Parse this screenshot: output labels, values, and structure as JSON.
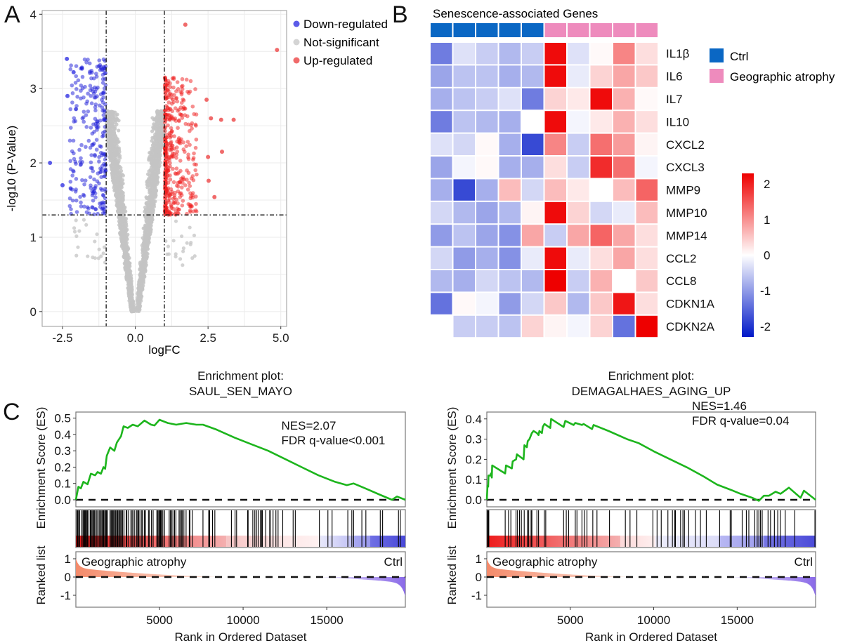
{
  "figure": {
    "panel_labels": [
      "A",
      "B",
      "C"
    ]
  },
  "chart_data": [
    {
      "id": "volcano",
      "type": "scatter",
      "title": "",
      "xlabel": "logFC",
      "ylabel": "-log10 (P-Value)",
      "xlim": [
        -3.2,
        5.2
      ],
      "ylim": [
        -0.2,
        4.05
      ],
      "x_ticks": [
        -2.5,
        0.0,
        2.5,
        5.0
      ],
      "x_tick_labels": [
        "-2.5",
        "0.0",
        "2.5",
        "5.0"
      ],
      "y_ticks": [
        0,
        1,
        2,
        3,
        4
      ],
      "y_tick_labels": [
        "0",
        "1",
        "2",
        "3",
        "4"
      ],
      "grid": true,
      "thresholds": {
        "logFC": [
          -1,
          1
        ],
        "neg_log10_p": 1.3
      },
      "legend": {
        "placement": "right",
        "entries": [
          {
            "label": "Down-regulated",
            "color": "#5b5be8"
          },
          {
            "label": "Not-significant",
            "color": "#c8c8c8"
          },
          {
            "label": "Up-regulated",
            "color": "#f06a6a"
          }
        ]
      },
      "highlight_points": [
        {
          "x": 4.87,
          "y": 3.52,
          "group": "up"
        },
        {
          "x": 1.72,
          "y": 3.86,
          "group": "up"
        },
        {
          "x": 3.38,
          "y": 2.58,
          "group": "up"
        },
        {
          "x": 2.98,
          "y": 2.15,
          "group": "up"
        },
        {
          "x": 2.95,
          "y": 2.58,
          "group": "up"
        },
        {
          "x": 2.6,
          "y": 2.6,
          "group": "up"
        },
        {
          "x": 2.45,
          "y": 2.85,
          "group": "up"
        },
        {
          "x": 2.5,
          "y": 2.08,
          "group": "up"
        },
        {
          "x": 2.72,
          "y": 1.54,
          "group": "up"
        },
        {
          "x": 2.52,
          "y": 1.76,
          "group": "up"
        },
        {
          "x": -2.93,
          "y": 2.0,
          "group": "down"
        },
        {
          "x": -2.35,
          "y": 3.4,
          "group": "down"
        },
        {
          "x": -2.5,
          "y": 1.7,
          "group": "down"
        },
        {
          "x": -2.33,
          "y": 2.9,
          "group": "down"
        },
        {
          "x": -2.12,
          "y": 3.22,
          "group": "down"
        }
      ],
      "bulk_description": "Dense V-shaped cloud of non-significant genes centered at logFC 0; blue points for logFC<-1 and p<0.05, red points for logFC>1 and p<0.05"
    },
    {
      "id": "heatmap",
      "type": "heatmap",
      "title": "Senescence-associated Genes",
      "rows": [
        "IL1β",
        "IL6",
        "IL7",
        "IL10",
        "CXCL2",
        "CXCL3",
        "MMP9",
        "MMP10",
        "MMP14",
        "CCL2",
        "CCL8",
        "CDKN1A",
        "CDKN2A"
      ],
      "columns": [
        "Ctrl",
        "Ctrl",
        "Ctrl",
        "Ctrl",
        "Ctrl",
        "Geographic atrophy",
        "Geographic atrophy",
        "Geographic atrophy",
        "Geographic atrophy",
        "Geographic atrophy"
      ],
      "values": [
        [
          -1.3,
          -0.3,
          -0.5,
          -0.7,
          -0.5,
          2.2,
          -0.3,
          0.05,
          1.1,
          0.3
        ],
        [
          -0.9,
          -0.6,
          -0.6,
          -0.8,
          -0.7,
          2.2,
          -0.2,
          0.4,
          0.8,
          0.5
        ],
        [
          -0.8,
          -0.6,
          -0.5,
          -0.3,
          -1.3,
          0.4,
          0.2,
          2.2,
          0.7,
          0.05
        ],
        [
          -1.3,
          -0.6,
          -0.7,
          -0.8,
          0.0,
          2.2,
          -0.1,
          0.2,
          0.7,
          0.3
        ],
        [
          -0.3,
          -0.4,
          0.05,
          -0.8,
          -1.8,
          1.1,
          -0.5,
          1.3,
          0.9,
          0.1
        ],
        [
          -0.9,
          -0.1,
          0.05,
          -0.8,
          -0.8,
          0.3,
          -0.5,
          1.9,
          1.3,
          -0.1
        ],
        [
          -0.8,
          -1.8,
          -0.8,
          0.6,
          -0.4,
          0.6,
          0.2,
          0.0,
          0.6,
          1.4
        ],
        [
          -0.4,
          -0.7,
          -0.9,
          -0.7,
          0.1,
          2.2,
          0.4,
          -0.4,
          -0.2,
          0.6
        ],
        [
          -1.0,
          -0.6,
          -0.9,
          -1.1,
          0.8,
          -0.5,
          0.8,
          1.4,
          0.8,
          0.3
        ],
        [
          -0.4,
          -1.0,
          -0.8,
          -1.1,
          -0.2,
          2.2,
          -0.2,
          0.3,
          0.8,
          0.3
        ],
        [
          -0.7,
          -0.8,
          -0.4,
          -0.6,
          -0.7,
          2.3,
          -0.5,
          0.7,
          0.0,
          0.5
        ],
        [
          -1.4,
          0.05,
          -0.1,
          -1.0,
          -0.4,
          0.5,
          -0.7,
          0.5,
          2.1,
          0.3
        ],
        [
          0.0,
          -0.5,
          -0.5,
          -0.6,
          0.4,
          0.1,
          -0.1,
          0.4,
          -1.4,
          2.3
        ]
      ],
      "color_scale": {
        "min": -2.3,
        "max": 2.3,
        "low": "#0018c8",
        "mid": "#ffffff",
        "high": "#ee0000"
      },
      "colorbar_ticks": [
        2,
        1,
        0,
        -1,
        -2
      ],
      "colorbar_tick_labels": [
        "2",
        "1",
        "0",
        "-1",
        "-2"
      ],
      "legend": {
        "placement": "right",
        "entries": [
          {
            "label": "Ctrl",
            "color": "#0a67c4"
          },
          {
            "label": "Geographic atrophy",
            "color": "#ee8bbd"
          }
        ]
      }
    },
    {
      "id": "gsea-left",
      "type": "line",
      "title": "Enrichment plot:\nSAUL_SEN_MAYO",
      "title_line1": "Enrichment plot:",
      "title_line2": "SAUL_SEN_MAYO",
      "ylabel_es": "Enrichment Score (ES)",
      "ylabel_rank": "Ranked list",
      "xlabel": "Rank in Ordered Dataset",
      "annotation_line1": "NES=2.07",
      "annotation_line2": "FDR q-value<0.001",
      "xlim": [
        0,
        19700
      ],
      "es_ylim": [
        -0.02,
        0.52
      ],
      "es_ticks": [
        0.0,
        0.1,
        0.2,
        0.3,
        0.4,
        0.5
      ],
      "es_tick_labels": [
        "0.0",
        "0.1",
        "0.2",
        "0.3",
        "0.4",
        "0.5"
      ],
      "rank_ticks": [
        1,
        0,
        -1
      ],
      "rank_tick_labels": [
        "1",
        "0",
        "-1"
      ],
      "x_ticks": [
        5000,
        10000,
        15000
      ],
      "x_tick_labels": [
        "5000",
        "10000",
        "15000"
      ],
      "group_labels": {
        "left": "Geographic atrophy",
        "right": "Ctrl"
      },
      "line_color": "#1db51d",
      "es_curve": [
        [
          0,
          0.0
        ],
        [
          150,
          0.08
        ],
        [
          300,
          0.07
        ],
        [
          450,
          0.11
        ],
        [
          700,
          0.095
        ],
        [
          900,
          0.16
        ],
        [
          1150,
          0.15
        ],
        [
          1300,
          0.17
        ],
        [
          1500,
          0.16
        ],
        [
          1650,
          0.2
        ],
        [
          1750,
          0.19
        ],
        [
          1850,
          0.27
        ],
        [
          2050,
          0.32
        ],
        [
          2300,
          0.3
        ],
        [
          2450,
          0.35
        ],
        [
          2700,
          0.39
        ],
        [
          2850,
          0.45
        ],
        [
          3100,
          0.44
        ],
        [
          3400,
          0.46
        ],
        [
          3700,
          0.45
        ],
        [
          4100,
          0.485
        ],
        [
          4500,
          0.46
        ],
        [
          4700,
          0.455
        ],
        [
          5000,
          0.49
        ],
        [
          5500,
          0.47
        ],
        [
          6000,
          0.46
        ],
        [
          6600,
          0.47
        ],
        [
          7200,
          0.46
        ],
        [
          7600,
          0.46
        ],
        [
          8400,
          0.43
        ],
        [
          9500,
          0.38
        ],
        [
          10500,
          0.34
        ],
        [
          11500,
          0.3
        ],
        [
          12500,
          0.25
        ],
        [
          13500,
          0.2
        ],
        [
          14500,
          0.15
        ],
        [
          15500,
          0.11
        ],
        [
          16200,
          0.09
        ],
        [
          16600,
          0.1
        ],
        [
          17300,
          0.07
        ],
        [
          18200,
          0.03
        ],
        [
          18900,
          0.0
        ],
        [
          19200,
          0.02
        ],
        [
          19700,
          0.0
        ]
      ],
      "hit_ranks": [
        60,
        110,
        170,
        220,
        330,
        420,
        470,
        520,
        560,
        600,
        660,
        690,
        780,
        860,
        900,
        960,
        1020,
        1060,
        1120,
        1200,
        1260,
        1340,
        1420,
        1480,
        1550,
        1600,
        1660,
        1720,
        1780,
        1830,
        1900,
        2040,
        2100,
        2150,
        2210,
        2260,
        2320,
        2380,
        2440,
        2500,
        2560,
        2620,
        2680,
        2740,
        2800,
        2880,
        3010,
        3050,
        3150,
        3290,
        3360,
        3420,
        3520,
        3640,
        3700,
        3760,
        3830,
        3940,
        4000,
        4100,
        4160,
        4340,
        4400,
        4520,
        4620,
        4840,
        4900,
        4960,
        5010,
        5050,
        5080,
        5120,
        5200,
        5300,
        5580,
        5650,
        5730,
        5800,
        5900,
        5980,
        6170,
        6230,
        6310,
        6360,
        6460,
        6590,
        6780,
        6820,
        6960,
        7600,
        7940,
        8000,
        8170,
        8310,
        9300,
        9520,
        9610,
        10270,
        10300,
        10580,
        10700,
        10800,
        10900,
        11040,
        11100,
        11150,
        11350,
        11590,
        11620,
        11790,
        11960,
        12090,
        12370,
        12990,
        13120,
        14560,
        15070,
        15320,
        16260,
        16500,
        16610,
        17100,
        17340,
        18200,
        18340,
        19290,
        19400
      ],
      "rank_strip": [
        {
          "from": 0,
          "to": 9000,
          "color_from": "#ee1c1c",
          "color_to": "#f4b0b0"
        },
        {
          "from": 9000,
          "to": 12300,
          "color_from": "#f6c4c4",
          "color_to": "#fbe4e4"
        },
        {
          "from": 12300,
          "to": 14600,
          "color_from": "#fde6e6",
          "color_to": "#fff2f2"
        },
        {
          "from": 14600,
          "to": 16600,
          "color_from": "#e8e8fa",
          "color_to": "#c0c0f4"
        },
        {
          "from": 16600,
          "to": 17600,
          "color_from": "#a8a8f0",
          "color_to": "#9a9aee"
        },
        {
          "from": 17600,
          "to": 19700,
          "color_from": "#7070e4",
          "color_to": "#4848d8"
        }
      ]
    },
    {
      "id": "gsea-right",
      "type": "line",
      "title": "Enrichment plot:\nDEMAGALHAES_AGING_UP",
      "title_line1": "Enrichment plot:",
      "title_line2": "DEMAGALHAES_AGING_UP",
      "ylabel_es": "Enrichment Score (ES)",
      "ylabel_rank": "Ranked list",
      "xlabel": "Rank in Ordered Dataset",
      "annotation_line1": "NES=1.46",
      "annotation_line2": "FDR q-value=0.04",
      "xlim": [
        0,
        19700
      ],
      "es_ylim": [
        -0.025,
        0.42
      ],
      "es_ticks": [
        0.0,
        0.1,
        0.2,
        0.3,
        0.4
      ],
      "es_tick_labels": [
        "0.0",
        "0.1",
        "0.2",
        "0.3",
        "0.4"
      ],
      "rank_ticks": [
        1,
        0,
        -1
      ],
      "rank_tick_labels": [
        "1",
        "0",
        "-1"
      ],
      "x_ticks": [
        5000,
        10000,
        15000
      ],
      "x_tick_labels": [
        "5000",
        "10000",
        "15000"
      ],
      "group_labels": {
        "left": "Geographic atrophy",
        "right": "Ctrl"
      },
      "line_color": "#1db51d",
      "es_curve": [
        [
          0,
          0.0
        ],
        [
          40,
          0.07
        ],
        [
          80,
          0.065
        ],
        [
          100,
          0.12
        ],
        [
          200,
          0.12
        ],
        [
          250,
          0.13
        ],
        [
          300,
          0.11
        ],
        [
          320,
          0.17
        ],
        [
          1100,
          0.13
        ],
        [
          1150,
          0.17
        ],
        [
          1500,
          0.155
        ],
        [
          1550,
          0.19
        ],
        [
          1750,
          0.2
        ],
        [
          1800,
          0.225
        ],
        [
          2200,
          0.2
        ],
        [
          2250,
          0.27
        ],
        [
          2400,
          0.26
        ],
        [
          2450,
          0.29
        ],
        [
          2550,
          0.3
        ],
        [
          2600,
          0.31
        ],
        [
          2700,
          0.33
        ],
        [
          2800,
          0.34
        ],
        [
          3000,
          0.33
        ],
        [
          3100,
          0.32
        ],
        [
          3150,
          0.34
        ],
        [
          3300,
          0.33
        ],
        [
          3350,
          0.36
        ],
        [
          3450,
          0.375
        ],
        [
          3800,
          0.355
        ],
        [
          3850,
          0.4
        ],
        [
          4600,
          0.36
        ],
        [
          4700,
          0.39
        ],
        [
          5200,
          0.37
        ],
        [
          5300,
          0.38
        ],
        [
          5700,
          0.37
        ],
        [
          5800,
          0.375
        ],
        [
          6300,
          0.35
        ],
        [
          6400,
          0.37
        ],
        [
          7300,
          0.34
        ],
        [
          8400,
          0.3
        ],
        [
          9100,
          0.28
        ],
        [
          10000,
          0.24
        ],
        [
          11000,
          0.2
        ],
        [
          12000,
          0.16
        ],
        [
          13000,
          0.115
        ],
        [
          13800,
          0.075
        ],
        [
          14600,
          0.05
        ],
        [
          15200,
          0.03
        ],
        [
          15900,
          0.01
        ],
        [
          16300,
          -0.005
        ],
        [
          16600,
          0.02
        ],
        [
          16900,
          0.02
        ],
        [
          17300,
          0.04
        ],
        [
          17600,
          0.03
        ],
        [
          18100,
          0.06
        ],
        [
          18800,
          0.01
        ],
        [
          19000,
          0.045
        ],
        [
          19700,
          0.0
        ]
      ],
      "hit_ranks": [
        40,
        80,
        120,
        1100,
        1300,
        1440,
        1750,
        1840,
        1960,
        2070,
        2240,
        2430,
        2510,
        2650,
        2700,
        3000,
        3100,
        3450,
        3530,
        4600,
        4760,
        4900,
        5300,
        5400,
        5700,
        5850,
        6000,
        6350,
        6600,
        7350,
        8300,
        8580,
        8990,
        9950,
        10200,
        10450,
        10850,
        11120,
        11250,
        11300,
        11610,
        11750,
        11840,
        12100,
        12500,
        12800,
        13150,
        13950,
        14580,
        14650,
        15300,
        15550,
        15700,
        16050,
        16200,
        16300,
        16400,
        16500,
        16850,
        17000,
        17230,
        17430,
        17590,
        17880,
        18450,
        19900
      ],
      "rank_strip": [
        {
          "from": 0,
          "to": 8000,
          "color_from": "#ee1c1c",
          "color_to": "#f4b0b0"
        },
        {
          "from": 8000,
          "to": 10100,
          "color_from": "#fcd8d8",
          "color_to": "#fff0f0"
        },
        {
          "from": 10100,
          "to": 13900,
          "color_from": "#ececfb",
          "color_to": "#dcdcf8"
        },
        {
          "from": 13900,
          "to": 16600,
          "color_from": "#b8b8f2",
          "color_to": "#9c9cee"
        },
        {
          "from": 16600,
          "to": 19700,
          "color_from": "#7676e4",
          "color_to": "#4a4ad8"
        }
      ]
    }
  ]
}
